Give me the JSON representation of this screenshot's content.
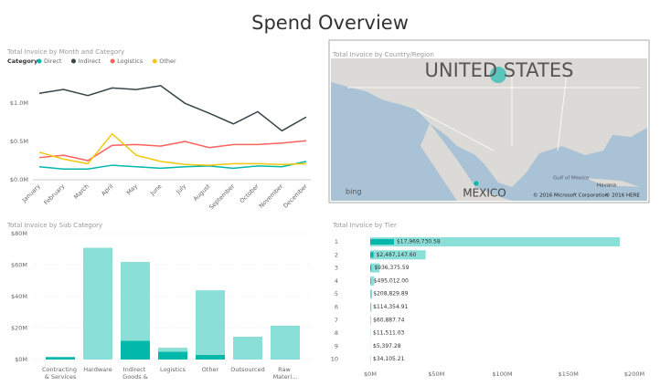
{
  "title": "Spend Overview",
  "chart_data": [
    {
      "type": "line",
      "title": "Total Invoice by Month and Category",
      "legend_title": "Category",
      "categories": [
        "January",
        "February",
        "March",
        "April",
        "May",
        "June",
        "July",
        "August",
        "September",
        "October",
        "November",
        "December"
      ],
      "series": [
        {
          "name": "Direct",
          "color": "#01B8AA",
          "values": [
            170000,
            140000,
            140000,
            190000,
            170000,
            150000,
            170000,
            180000,
            150000,
            180000,
            170000,
            240000
          ]
        },
        {
          "name": "Indirect",
          "color": "#374649",
          "values": [
            1130000,
            1180000,
            1100000,
            1200000,
            1180000,
            1230000,
            1000000,
            870000,
            730000,
            890000,
            640000,
            820000
          ]
        },
        {
          "name": "Logistics",
          "color": "#FD625E",
          "values": [
            290000,
            320000,
            250000,
            450000,
            460000,
            440000,
            500000,
            420000,
            460000,
            460000,
            480000,
            510000
          ]
        },
        {
          "name": "Other",
          "color": "#F2C80F",
          "values": [
            360000,
            270000,
            210000,
            600000,
            320000,
            240000,
            200000,
            190000,
            210000,
            210000,
            200000,
            210000
          ]
        }
      ],
      "ylim": [
        0,
        1300000
      ],
      "yticks": [
        {
          "value": 0,
          "label": "$0.0M"
        },
        {
          "value": 500000,
          "label": "$0.5M"
        },
        {
          "value": 1000000,
          "label": "$1.0M"
        }
      ],
      "grid": false
    },
    {
      "type": "stacked-bar",
      "title": "Total Invoice by Sub Category",
      "categories": [
        "Contracting & Services",
        "Hardware",
        "Indirect Goods &",
        "Logistics",
        "Other",
        "Outsourced",
        "Raw Materi..."
      ],
      "series": [
        {
          "color": "#01B8AA",
          "values": [
            1500000,
            0,
            12000000,
            5000000,
            3000000,
            0,
            0
          ]
        },
        {
          "color": "#8ADFD8",
          "values": [
            300000,
            71000000,
            50000000,
            2500000,
            41000000,
            14500000,
            21500000
          ]
        }
      ],
      "ylim": [
        0,
        80000000
      ],
      "yticks": [
        {
          "value": 0,
          "label": "$0M"
        },
        {
          "value": 20000000,
          "label": "$20M"
        },
        {
          "value": 40000000,
          "label": "$40M"
        },
        {
          "value": 60000000,
          "label": "$60M"
        },
        {
          "value": 80000000,
          "label": "$80M"
        }
      ],
      "grid": true
    },
    {
      "type": "hbar",
      "title": "Total Invoice by Tier",
      "categories": [
        "1",
        "2",
        "3",
        "4",
        "5",
        "6",
        "7",
        "8",
        "9",
        "10"
      ],
      "series": [
        {
          "color": "#8ADFD8",
          "values": [
            189000000,
            42000000,
            7000000,
            3000000,
            1500000,
            1000000,
            500000,
            200000,
            100000,
            300000
          ]
        },
        {
          "color": "#01B8AA",
          "values": [
            17969730.58,
            2487147.6,
            936375.59,
            495012.0,
            208829.89,
            114354.91,
            60887.74,
            11511.03,
            5397.28,
            34105.21
          ],
          "value_labels": [
            "$17,969,730.58",
            "$2,487,147.60",
            "$936,375.59",
            "$495,012.00",
            "$208,829.89",
            "$114,354.91",
            "$60,887.74",
            "$11,511.03",
            "$5,397.28",
            "$34,105.21"
          ]
        }
      ],
      "xlim": [
        0,
        200000000
      ],
      "xticks": [
        {
          "value": 0,
          "label": "$0M"
        },
        {
          "value": 50000000,
          "label": "$50M"
        },
        {
          "value": 100000000,
          "label": "$100M"
        },
        {
          "value": 150000000,
          "label": "$150M"
        },
        {
          "value": 200000000,
          "label": "$200M"
        }
      ],
      "grid": false
    }
  ],
  "map": {
    "title": "Total Invoice by Country/Region",
    "country_1": "UNITED STATES",
    "country_2": "MEXICO",
    "gulf": "Gulf of Mexico",
    "city": "Havana",
    "brand": "bing",
    "copyright_1": "© 2016 Microsoft Corporation",
    "copyright_2": "© 2016 HERE"
  }
}
